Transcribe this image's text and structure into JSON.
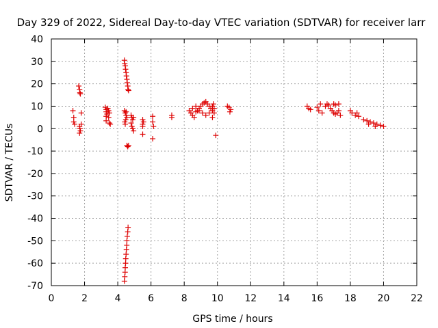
{
  "chart_data": {
    "type": "scatter",
    "title": "Day 329 of 2022, Sidereal Day-to-day VTEC variation (SDTVAR) for receiver larr",
    "xlabel": "GPS time / hours",
    "ylabel": "SDTVAR / TECUs",
    "xlim": [
      0,
      22
    ],
    "ylim": [
      -70,
      40
    ],
    "xticks": [
      0,
      2,
      4,
      6,
      8,
      10,
      12,
      14,
      16,
      18,
      20,
      22
    ],
    "yticks": [
      -70,
      -60,
      -50,
      -40,
      -30,
      -20,
      -10,
      0,
      10,
      20,
      30,
      40
    ],
    "grid": true,
    "marker": "+",
    "color": "#dd0000",
    "series": [
      {
        "name": "SDTVAR",
        "points": [
          [
            1.3,
            8
          ],
          [
            1.35,
            5
          ],
          [
            1.35,
            3
          ],
          [
            1.4,
            2
          ],
          [
            1.65,
            19
          ],
          [
            1.7,
            17.5
          ],
          [
            1.72,
            16
          ],
          [
            1.75,
            15.5
          ],
          [
            1.7,
            1
          ],
          [
            1.72,
            0
          ],
          [
            1.75,
            -1
          ],
          [
            1.7,
            -2
          ],
          [
            1.8,
            2
          ],
          [
            1.8,
            7
          ],
          [
            3.25,
            9.5
          ],
          [
            3.3,
            8.5
          ],
          [
            3.3,
            7.5
          ],
          [
            3.35,
            6.5
          ],
          [
            3.3,
            5.5
          ],
          [
            3.3,
            3.5
          ],
          [
            3.4,
            9
          ],
          [
            3.45,
            8
          ],
          [
            3.5,
            7
          ],
          [
            3.45,
            5
          ],
          [
            3.5,
            2.5
          ],
          [
            3.55,
            2
          ],
          [
            4.4,
            30.5
          ],
          [
            4.42,
            29
          ],
          [
            4.45,
            28
          ],
          [
            4.47,
            26.5
          ],
          [
            4.5,
            25
          ],
          [
            4.52,
            23.5
          ],
          [
            4.55,
            22
          ],
          [
            4.57,
            20.5
          ],
          [
            4.6,
            19
          ],
          [
            4.62,
            17.5
          ],
          [
            4.65,
            17
          ],
          [
            4.4,
            8
          ],
          [
            4.45,
            7
          ],
          [
            4.5,
            6
          ],
          [
            4.55,
            5
          ],
          [
            4.48,
            4
          ],
          [
            4.42,
            3
          ],
          [
            4.45,
            2
          ],
          [
            4.5,
            7.5
          ],
          [
            4.55,
            -7.5
          ],
          [
            4.6,
            -8
          ],
          [
            4.65,
            -7.5
          ],
          [
            4.4,
            -68
          ],
          [
            4.42,
            -66
          ],
          [
            4.44,
            -64
          ],
          [
            4.45,
            -62
          ],
          [
            4.47,
            -60
          ],
          [
            4.48,
            -58
          ],
          [
            4.5,
            -56
          ],
          [
            4.52,
            -54
          ],
          [
            4.54,
            -52
          ],
          [
            4.55,
            -50
          ],
          [
            4.57,
            -48
          ],
          [
            4.6,
            -46
          ],
          [
            4.62,
            -44
          ],
          [
            4.8,
            6
          ],
          [
            4.85,
            5
          ],
          [
            4.9,
            4
          ],
          [
            4.8,
            2.5
          ],
          [
            4.85,
            1
          ],
          [
            4.9,
            0
          ],
          [
            4.95,
            -1
          ],
          [
            4.95,
            5
          ],
          [
            5.5,
            4
          ],
          [
            5.5,
            2
          ],
          [
            5.5,
            1
          ],
          [
            5.5,
            -2.5
          ],
          [
            5.55,
            3
          ],
          [
            6.1,
            5.5
          ],
          [
            6.1,
            3
          ],
          [
            6.15,
            1
          ],
          [
            6.1,
            -4.5
          ],
          [
            7.25,
            6
          ],
          [
            7.25,
            5
          ],
          [
            8.3,
            8
          ],
          [
            8.4,
            7
          ],
          [
            8.5,
            6
          ],
          [
            8.6,
            5
          ],
          [
            8.7,
            7.5
          ],
          [
            8.8,
            8
          ],
          [
            8.9,
            9
          ],
          [
            9.0,
            10
          ],
          [
            9.1,
            11
          ],
          [
            9.2,
            11.5
          ],
          [
            9.3,
            12
          ],
          [
            9.4,
            11
          ],
          [
            9.5,
            10
          ],
          [
            9.6,
            9
          ],
          [
            9.7,
            8
          ],
          [
            9.8,
            7
          ],
          [
            9.7,
            10
          ],
          [
            9.75,
            11
          ],
          [
            9.8,
            9
          ],
          [
            8.5,
            9
          ],
          [
            8.7,
            10
          ],
          [
            8.9,
            8
          ],
          [
            9.1,
            7
          ],
          [
            9.3,
            6
          ],
          [
            9.5,
            7
          ],
          [
            9.7,
            5
          ],
          [
            9.9,
            -3
          ],
          [
            10.6,
            10
          ],
          [
            10.7,
            9.5
          ],
          [
            10.8,
            8.5
          ],
          [
            10.75,
            7.5
          ],
          [
            15.4,
            10
          ],
          [
            15.5,
            9
          ],
          [
            15.6,
            8.5
          ],
          [
            16.0,
            9.5
          ],
          [
            16.1,
            8
          ],
          [
            16.2,
            11
          ],
          [
            16.3,
            7
          ],
          [
            16.5,
            10
          ],
          [
            16.6,
            11
          ],
          [
            16.7,
            10.5
          ],
          [
            16.8,
            9
          ],
          [
            16.9,
            8
          ],
          [
            17.0,
            7
          ],
          [
            17.1,
            6.5
          ],
          [
            17.2,
            7
          ],
          [
            17.3,
            8
          ],
          [
            17.4,
            6
          ],
          [
            17.3,
            11
          ],
          [
            17.1,
            10.5
          ],
          [
            17.0,
            11
          ],
          [
            18.0,
            8
          ],
          [
            18.1,
            7
          ],
          [
            18.3,
            6
          ],
          [
            18.5,
            5.5
          ],
          [
            18.4,
            7
          ],
          [
            18.8,
            4
          ],
          [
            19.0,
            3.5
          ],
          [
            19.2,
            3
          ],
          [
            19.4,
            2.5
          ],
          [
            19.6,
            2
          ],
          [
            19.8,
            1.5
          ],
          [
            20.0,
            1
          ],
          [
            19.1,
            2
          ],
          [
            19.5,
            1
          ]
        ]
      }
    ]
  }
}
